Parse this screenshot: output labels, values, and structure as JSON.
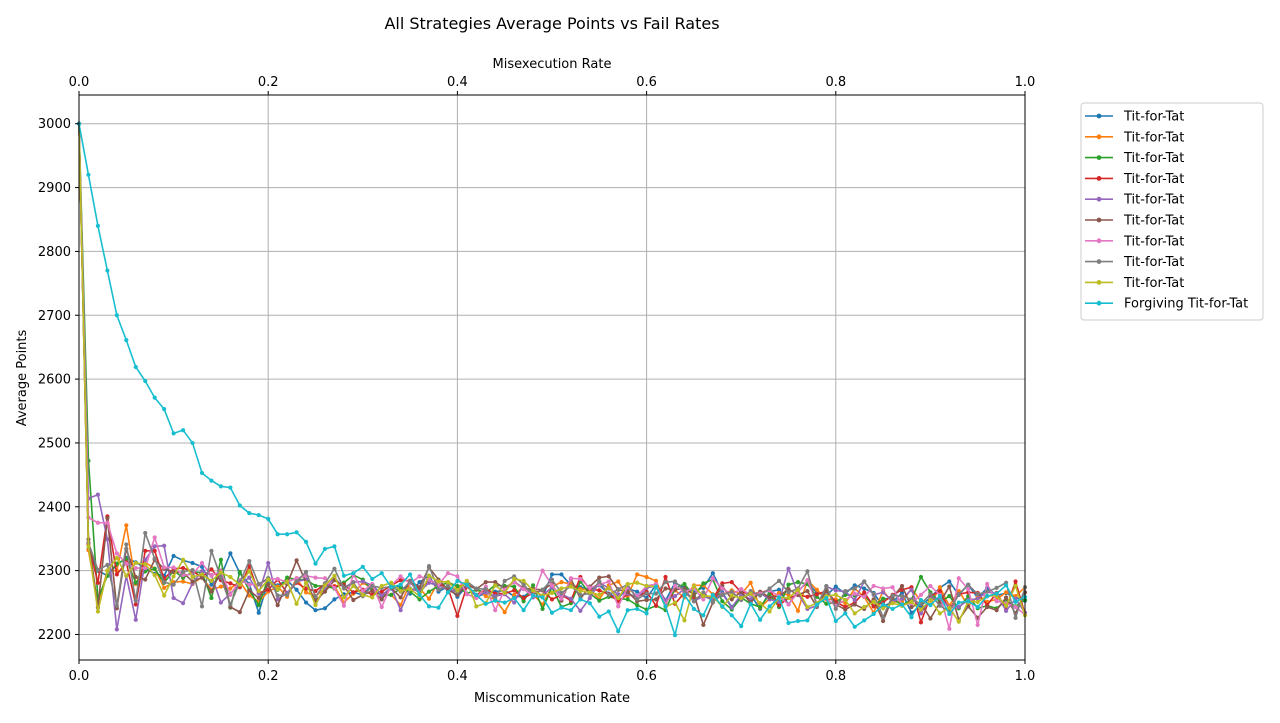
{
  "chart_data": {
    "type": "line",
    "title": "All Strategies Average Points vs Fail Rates",
    "xlabel": "Miscommunication Rate",
    "x2label": "Misexecution Rate",
    "ylabel": "Average Points",
    "xlim": [
      0,
      1
    ],
    "ylim": [
      2160,
      3045
    ],
    "x_ticks": [
      "0.0",
      "0.2",
      "0.4",
      "0.6",
      "0.8",
      "1.0"
    ],
    "x2_ticks": [
      "0.0",
      "0.2",
      "0.4",
      "0.6",
      "0.8",
      "1.0"
    ],
    "y_ticks": [
      "2200",
      "2300",
      "2400",
      "2500",
      "2600",
      "2700",
      "2800",
      "2900",
      "3000"
    ],
    "grid": true,
    "legend_position": "outside upper right",
    "sampling": "x from 0.00 to 1.00 in steps of 0.01",
    "series": [
      {
        "name": "Tit-for-Tat",
        "color": "#1f77b4",
        "values": [
          3000,
          2333,
          2300,
          2292,
          2309,
          2320,
          2313,
          2304,
          2295,
          2292,
          2323,
          2316,
          2312,
          2306,
          2278,
          2291,
          2327,
          2296,
          2279,
          2234,
          2283,
          2277,
          2285,
          2270,
          2250,
          2238,
          2241,
          2255,
          2263,
          2266,
          2262,
          2278,
          2262,
          2272,
          2276,
          2264,
          2282,
          2292,
          2267,
          2275,
          2259,
          2276,
          2259,
          2264,
          2267,
          2269,
          2260,
          2259,
          2271,
          2259,
          2294,
          2294,
          2277,
          2274,
          2271,
          2277,
          2264,
          2257,
          2272,
          2267,
          2257,
          2278,
          2253,
          2281,
          2273,
          2268,
          2273,
          2296,
          2266,
          2243,
          2260,
          2262,
          2240,
          2267,
          2270,
          2247,
          2268,
          2282,
          2265,
          2261,
          2275,
          2264,
          2277,
          2272,
          2265,
          2244,
          2251,
          2265,
          2234,
          2245,
          2258,
          2273,
          2283,
          2262,
          2278,
          2257,
          2273,
          2261,
          2265,
          2258,
          2253
        ]
      },
      {
        "name": "Tit-for-Tat",
        "color": "#ff7f0e",
        "values": [
          3000,
          2332,
          2247,
          2300,
          2300,
          2371,
          2279,
          2313,
          2303,
          2273,
          2282,
          2283,
          2279,
          2290,
          2270,
          2275,
          2272,
          2283,
          2261,
          2251,
          2267,
          2275,
          2259,
          2288,
          2266,
          2260,
          2272,
          2276,
          2250,
          2264,
          2281,
          2272,
          2262,
          2262,
          2246,
          2281,
          2272,
          2256,
          2283,
          2282,
          2275,
          2281,
          2271,
          2260,
          2255,
          2235,
          2262,
          2275,
          2263,
          2247,
          2275,
          2282,
          2279,
          2271,
          2270,
          2255,
          2277,
          2283,
          2260,
          2294,
          2290,
          2284,
          2250,
          2269,
          2258,
          2277,
          2277,
          2263,
          2262,
          2269,
          2263,
          2281,
          2242,
          2256,
          2265,
          2262,
          2237,
          2285,
          2270,
          2255,
          2255,
          2249,
          2272,
          2259,
          2234,
          2268,
          2251,
          2251,
          2272,
          2252,
          2247,
          2274,
          2245,
          2268,
          2245,
          2259,
          2251,
          2255,
          2266,
          2260,
          2274
        ]
      },
      {
        "name": "Tit-for-Tat",
        "color": "#2ca02c",
        "values": [
          3000,
          2472,
          2256,
          2292,
          2311,
          2318,
          2281,
          2299,
          2303,
          2281,
          2300,
          2289,
          2298,
          2297,
          2257,
          2317,
          2242,
          2298,
          2269,
          2246,
          2288,
          2270,
          2289,
          2286,
          2286,
          2276,
          2276,
          2272,
          2281,
          2293,
          2286,
          2269,
          2261,
          2262,
          2272,
          2267,
          2255,
          2267,
          2276,
          2281,
          2276,
          2264,
          2270,
          2266,
          2277,
          2276,
          2275,
          2252,
          2277,
          2240,
          2274,
          2243,
          2249,
          2283,
          2264,
          2253,
          2259,
          2256,
          2255,
          2246,
          2239,
          2245,
          2238,
          2272,
          2279,
          2260,
          2280,
          2286,
          2252,
          2239,
          2258,
          2248,
          2243,
          2263,
          2243,
          2278,
          2282,
          2279,
          2259,
          2248,
          2250,
          2262,
          2261,
          2262,
          2244,
          2256,
          2256,
          2246,
          2254,
          2290,
          2266,
          2251,
          2260,
          2241,
          2260,
          2241,
          2245,
          2241,
          2253,
          2244,
          2254
        ]
      },
      {
        "name": "Tit-for-Tat",
        "color": "#d62728",
        "values": [
          3000,
          2342,
          2281,
          2385,
          2294,
          2313,
          2247,
          2331,
          2331,
          2287,
          2303,
          2304,
          2299,
          2290,
          2302,
          2285,
          2280,
          2274,
          2307,
          2265,
          2270,
          2286,
          2265,
          2281,
          2272,
          2268,
          2279,
          2275,
          2278,
          2266,
          2270,
          2262,
          2267,
          2277,
          2285,
          2284,
          2270,
          2285,
          2279,
          2273,
          2229,
          2275,
          2262,
          2271,
          2264,
          2264,
          2269,
          2257,
          2265,
          2269,
          2255,
          2262,
          2253,
          2290,
          2271,
          2269,
          2263,
          2252,
          2263,
          2259,
          2267,
          2245,
          2290,
          2248,
          2265,
          2256,
          2260,
          2256,
          2280,
          2282,
          2266,
          2264,
          2265,
          2270,
          2246,
          2257,
          2262,
          2259,
          2263,
          2268,
          2251,
          2243,
          2250,
          2266,
          2244,
          2250,
          2262,
          2270,
          2274,
          2219,
          2260,
          2268,
          2239,
          2263,
          2266,
          2265,
          2246,
          2265,
          2240,
          2283,
          2232
        ]
      },
      {
        "name": "Tit-for-Tat",
        "color": "#9467bd",
        "values": [
          3000,
          2413,
          2419,
          2349,
          2208,
          2292,
          2223,
          2317,
          2338,
          2339,
          2257,
          2249,
          2280,
          2299,
          2293,
          2250,
          2264,
          2279,
          2289,
          2264,
          2312,
          2255,
          2265,
          2283,
          2286,
          2247,
          2272,
          2289,
          2273,
          2282,
          2283,
          2277,
          2261,
          2274,
          2238,
          2272,
          2267,
          2281,
          2276,
          2270,
          2267,
          2276,
          2260,
          2266,
          2260,
          2263,
          2250,
          2279,
          2258,
          2261,
          2274,
          2263,
          2256,
          2237,
          2257,
          2282,
          2272,
          2263,
          2264,
          2258,
          2273,
          2276,
          2254,
          2260,
          2271,
          2252,
          2260,
          2254,
          2264,
          2242,
          2263,
          2255,
          2265,
          2255,
          2251,
          2303,
          2264,
          2240,
          2245,
          2275,
          2269,
          2267,
          2254,
          2283,
          2262,
          2266,
          2252,
          2256,
          2270,
          2233,
          2256,
          2257,
          2243,
          2243,
          2254,
          2256,
          2267,
          2263,
          2237,
          2256,
          2234
        ]
      },
      {
        "name": "Tit-for-Tat",
        "color": "#8c564b",
        "values": [
          3000,
          2349,
          2242,
          2382,
          2241,
          2334,
          2290,
          2286,
          2317,
          2303,
          2298,
          2297,
          2283,
          2289,
          2267,
          2300,
          2243,
          2235,
          2269,
          2257,
          2278,
          2246,
          2279,
          2316,
          2281,
          2253,
          2267,
          2285,
          2276,
          2254,
          2262,
          2268,
          2255,
          2273,
          2258,
          2284,
          2274,
          2305,
          2286,
          2270,
          2262,
          2278,
          2271,
          2282,
          2282,
          2272,
          2283,
          2272,
          2271,
          2270,
          2279,
          2253,
          2287,
          2256,
          2275,
          2289,
          2291,
          2270,
          2267,
          2252,
          2254,
          2255,
          2272,
          2270,
          2272,
          2263,
          2215,
          2250,
          2276,
          2255,
          2267,
          2250,
          2267,
          2258,
          2260,
          2271,
          2262,
          2268,
          2243,
          2269,
          2247,
          2239,
          2247,
          2240,
          2255,
          2221,
          2258,
          2276,
          2243,
          2249,
          2225,
          2250,
          2275,
          2223,
          2244,
          2226,
          2243,
          2238,
          2258,
          2233,
          2266
        ]
      },
      {
        "name": "Tit-for-Tat",
        "color": "#e377c2",
        "values": [
          3000,
          2383,
          2375,
          2375,
          2327,
          2311,
          2304,
          2304,
          2352,
          2305,
          2305,
          2293,
          2294,
          2312,
          2292,
          2299,
          2262,
          2285,
          2278,
          2278,
          2287,
          2287,
          2282,
          2288,
          2292,
          2289,
          2288,
          2273,
          2245,
          2294,
          2268,
          2279,
          2243,
          2277,
          2291,
          2280,
          2291,
          2286,
          2278,
          2296,
          2291,
          2263,
          2257,
          2275,
          2238,
          2270,
          2282,
          2271,
          2260,
          2300,
          2277,
          2256,
          2288,
          2287,
          2273,
          2278,
          2283,
          2244,
          2274,
          2260,
          2276,
          2279,
          2247,
          2276,
          2267,
          2272,
          2255,
          2288,
          2272,
          2263,
          2271,
          2262,
          2264,
          2269,
          2260,
          2247,
          2266,
          2285,
          2249,
          2256,
          2245,
          2254,
          2264,
          2259,
          2276,
          2272,
          2274,
          2246,
          2249,
          2262,
          2276,
          2262,
          2209,
          2288,
          2271,
          2215,
          2279,
          2252,
          2249,
          2243,
          2231
        ]
      },
      {
        "name": "Tit-for-Tat",
        "color": "#7f7f7f",
        "values": [
          3000,
          2344,
          2301,
          2309,
          2245,
          2341,
          2253,
          2359,
          2319,
          2282,
          2278,
          2298,
          2301,
          2244,
          2331,
          2289,
          2247,
          2282,
          2315,
          2279,
          2288,
          2261,
          2262,
          2283,
          2298,
          2259,
          2280,
          2303,
          2272,
          2281,
          2260,
          2276,
          2273,
          2275,
          2267,
          2283,
          2263,
          2307,
          2270,
          2276,
          2267,
          2283,
          2272,
          2271,
          2255,
          2284,
          2291,
          2278,
          2262,
          2270,
          2286,
          2265,
          2276,
          2262,
          2264,
          2283,
          2262,
          2271,
          2278,
          2255,
          2264,
          2264,
          2282,
          2283,
          2268,
          2252,
          2266,
          2251,
          2262,
          2267,
          2254,
          2268,
          2261,
          2272,
          2284,
          2266,
          2272,
          2299,
          2244,
          2276,
          2240,
          2268,
          2272,
          2283,
          2263,
          2227,
          2261,
          2260,
          2255,
          2248,
          2263,
          2245,
          2236,
          2263,
          2278,
          2263,
          2267,
          2273,
          2281,
          2226,
          2274
        ]
      },
      {
        "name": "Tit-for-Tat",
        "color": "#bcbd22",
        "values": [
          3000,
          2338,
          2236,
          2300,
          2320,
          2292,
          2312,
          2310,
          2293,
          2261,
          2291,
          2317,
          2290,
          2294,
          2284,
          2297,
          2290,
          2278,
          2299,
          2268,
          2286,
          2271,
          2283,
          2248,
          2281,
          2246,
          2277,
          2292,
          2258,
          2276,
          2262,
          2258,
          2276,
          2281,
          2268,
          2271,
          2260,
          2292,
          2283,
          2282,
          2269,
          2284,
          2244,
          2249,
          2277,
          2265,
          2287,
          2284,
          2269,
          2261,
          2265,
          2272,
          2275,
          2268,
          2266,
          2262,
          2273,
          2257,
          2279,
          2281,
          2276,
          2275,
          2243,
          2250,
          2222,
          2276,
          2260,
          2260,
          2243,
          2261,
          2257,
          2264,
          2249,
          2236,
          2258,
          2257,
          2270,
          2243,
          2249,
          2260,
          2262,
          2254,
          2233,
          2243,
          2251,
          2241,
          2249,
          2245,
          2251,
          2239,
          2254,
          2233,
          2242,
          2220,
          2252,
          2251,
          2260,
          2261,
          2245,
          2276,
          2230
        ]
      },
      {
        "name": "Forgiving Tit-for-Tat",
        "color": "#17becf",
        "values": [
          3000,
          2920,
          2840,
          2770,
          2700,
          2661,
          2619,
          2597,
          2571,
          2553,
          2515,
          2520,
          2500,
          2453,
          2441,
          2432,
          2430,
          2402,
          2390,
          2387,
          2381,
          2357,
          2357,
          2360,
          2345,
          2311,
          2334,
          2338,
          2292,
          2296,
          2306,
          2287,
          2296,
          2274,
          2278,
          2294,
          2262,
          2244,
          2242,
          2266,
          2284,
          2278,
          2262,
          2248,
          2253,
          2250,
          2257,
          2238,
          2261,
          2258,
          2234,
          2242,
          2238,
          2255,
          2249,
          2228,
          2236,
          2205,
          2238,
          2240,
          2233,
          2275,
          2244,
          2199,
          2262,
          2240,
          2230,
          2262,
          2244,
          2230,
          2213,
          2248,
          2223,
          2244,
          2258,
          2218,
          2221,
          2222,
          2247,
          2257,
          2221,
          2233,
          2212,
          2222,
          2232,
          2247,
          2240,
          2247,
          2227,
          2254,
          2246,
          2260,
          2232,
          2250,
          2252,
          2243,
          2260,
          2264,
          2277,
          2251,
          2259
        ]
      }
    ]
  }
}
